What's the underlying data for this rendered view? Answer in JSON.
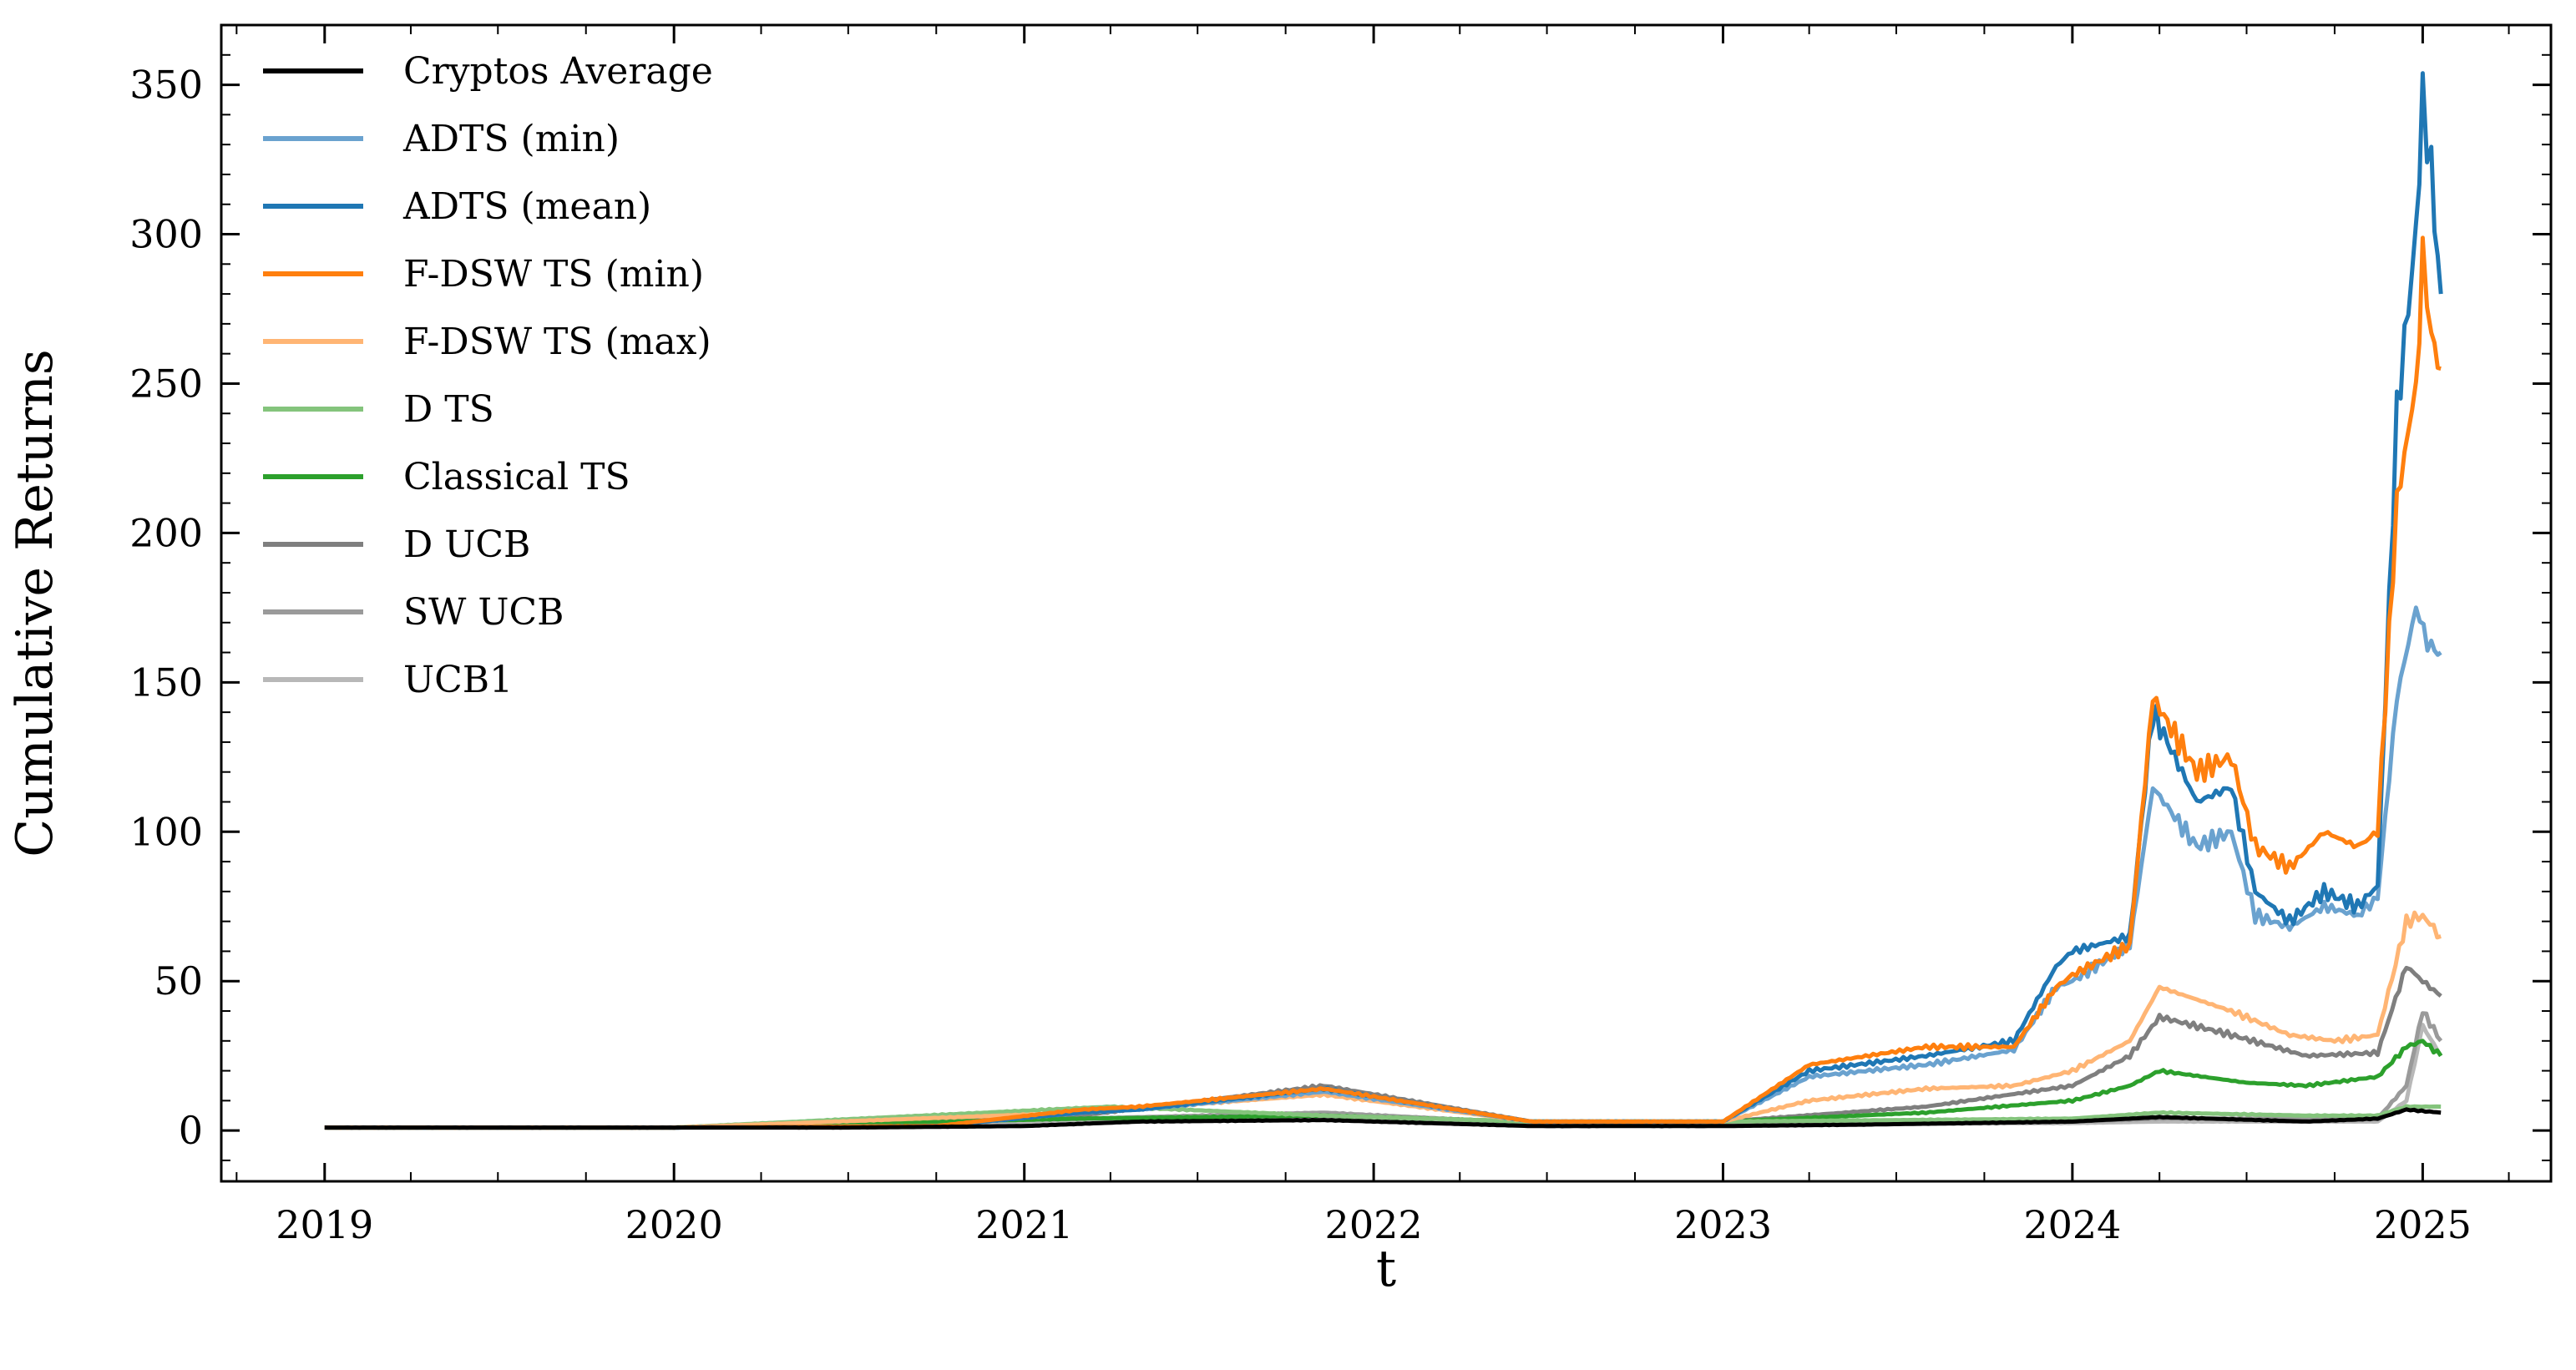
{
  "chart_data": {
    "type": "line",
    "title": "",
    "xlabel": "t",
    "ylabel": "Cumulative Returns",
    "xlim": [
      "2018-09-15",
      "2025-05-15"
    ],
    "ylim": [
      -17,
      370
    ],
    "x_ticks": [
      "2019",
      "2020",
      "2021",
      "2022",
      "2023",
      "2024",
      "2025"
    ],
    "y_ticks": [
      0,
      50,
      100,
      150,
      200,
      250,
      300,
      350
    ],
    "grid": false,
    "legend_position": "upper-left",
    "series": [
      {
        "name": "Cryptos Average",
        "color": "#000000",
        "x": [
          "2019-01-01",
          "2019-07-01",
          "2020-01-01",
          "2020-07-01",
          "2021-01-01",
          "2021-05-01",
          "2021-11-10",
          "2022-06-15",
          "2023-01-01",
          "2023-06-01",
          "2024-01-01",
          "2024-04-01",
          "2024-09-01",
          "2024-11-15",
          "2024-12-15",
          "2025-01-20"
        ],
        "values": [
          1,
          1,
          1,
          1,
          1.5,
          3,
          3.5,
          1.5,
          1.5,
          2,
          3,
          4.5,
          3,
          4,
          7,
          6
        ]
      },
      {
        "name": "ADTS (min)",
        "color": "#6aa2cf",
        "x": [
          "2019-01-01",
          "2020-01-01",
          "2020-10-01",
          "2021-03-01",
          "2021-05-01",
          "2021-11-10",
          "2022-06-15",
          "2023-01-01",
          "2023-04-01",
          "2023-08-01",
          "2023-11-01",
          "2023-12-15",
          "2024-01-01",
          "2024-03-01",
          "2024-03-25",
          "2024-05-10",
          "2024-06-15",
          "2024-07-10",
          "2024-08-15",
          "2024-09-20",
          "2024-10-25",
          "2024-11-15",
          "2024-12-05",
          "2024-12-25",
          "2025-01-10",
          "2025-01-20"
        ],
        "values": [
          1,
          1,
          1.5,
          6,
          7,
          13,
          3,
          3,
          18,
          22,
          27,
          48,
          50,
          62,
          115,
          95,
          100,
          72,
          68,
          75,
          72,
          78,
          145,
          175,
          160,
          160
        ]
      },
      {
        "name": "ADTS (mean)",
        "color": "#1f77b4",
        "x": [
          "2019-01-01",
          "2020-01-01",
          "2020-10-01",
          "2021-03-01",
          "2021-05-01",
          "2021-11-10",
          "2022-06-15",
          "2023-01-01",
          "2023-04-01",
          "2023-08-01",
          "2023-11-01",
          "2023-12-15",
          "2024-01-01",
          "2024-03-01",
          "2024-03-25",
          "2024-05-10",
          "2024-06-15",
          "2024-07-10",
          "2024-08-15",
          "2024-09-20",
          "2024-10-25",
          "2024-11-15",
          "2024-12-05",
          "2024-12-25",
          "2025-01-01",
          "2025-01-10",
          "2025-01-20"
        ],
        "values": [
          1,
          1,
          1.5,
          6,
          7,
          14,
          3,
          3,
          20,
          25,
          30,
          55,
          60,
          65,
          140,
          110,
          115,
          80,
          70,
          80,
          75,
          82,
          240,
          300,
          350,
          320,
          280
        ]
      },
      {
        "name": "F-DSW TS (min)",
        "color": "#ff7f0e",
        "x": [
          "2019-01-01",
          "2020-01-01",
          "2020-10-01",
          "2021-03-01",
          "2021-05-01",
          "2021-11-10",
          "2022-06-15",
          "2023-01-01",
          "2023-04-01",
          "2023-08-01",
          "2023-11-01",
          "2023-12-15",
          "2024-01-01",
          "2024-03-01",
          "2024-03-25",
          "2024-05-10",
          "2024-06-15",
          "2024-07-10",
          "2024-08-15",
          "2024-09-20",
          "2024-10-25",
          "2024-11-15",
          "2024-12-05",
          "2024-12-25",
          "2025-01-01",
          "2025-01-10",
          "2025-01-20"
        ],
        "values": [
          1,
          1,
          1.5,
          7,
          8,
          14,
          3,
          3,
          22,
          28,
          28,
          48,
          52,
          62,
          145,
          120,
          125,
          95,
          88,
          100,
          95,
          100,
          210,
          250,
          290,
          270,
          255
        ]
      },
      {
        "name": "F-DSW TS (max)",
        "color": "#ffb574",
        "x": [
          "2019-01-01",
          "2020-01-01",
          "2021-03-01",
          "2021-11-10",
          "2022-06-15",
          "2023-01-01",
          "2023-04-01",
          "2023-08-01",
          "2023-11-01",
          "2024-01-01",
          "2024-03-01",
          "2024-04-01",
          "2024-06-15",
          "2024-08-15",
          "2024-10-01",
          "2024-11-15",
          "2024-12-15",
          "2025-01-01",
          "2025-01-20"
        ],
        "values": [
          1,
          1,
          6,
          12,
          3,
          3,
          10,
          14,
          15,
          20,
          30,
          48,
          40,
          32,
          30,
          32,
          70,
          72,
          65
        ]
      },
      {
        "name": "D TS",
        "color": "#84c47c",
        "x": [
          "2019-01-01",
          "2020-01-01",
          "2021-04-01",
          "2021-11-10",
          "2022-06-15",
          "2023-01-01",
          "2024-01-01",
          "2024-04-01",
          "2024-09-01",
          "2024-11-15",
          "2024-12-15",
          "2025-01-20"
        ],
        "values": [
          1,
          1,
          8,
          5,
          3,
          3,
          4,
          6,
          5,
          5,
          8,
          8
        ]
      },
      {
        "name": "Classical TS",
        "color": "#2ca02c",
        "x": [
          "2019-01-01",
          "2020-01-01",
          "2021-03-01",
          "2021-11-10",
          "2022-06-15",
          "2023-01-01",
          "2023-08-01",
          "2024-01-01",
          "2024-03-01",
          "2024-04-01",
          "2024-07-01",
          "2024-09-01",
          "2024-11-15",
          "2024-12-15",
          "2025-01-01",
          "2025-01-20"
        ],
        "values": [
          1,
          1,
          4,
          5,
          3,
          3,
          6,
          10,
          15,
          20,
          16,
          15,
          18,
          28,
          30,
          25
        ]
      },
      {
        "name": "D UCB",
        "color": "#7f7f7f",
        "x": [
          "2019-01-01",
          "2020-01-01",
          "2021-03-01",
          "2021-11-10",
          "2022-06-15",
          "2023-01-01",
          "2023-08-01",
          "2024-01-01",
          "2024-03-01",
          "2024-04-01",
          "2024-06-15",
          "2024-09-01",
          "2024-11-15",
          "2024-12-15",
          "2025-01-01",
          "2025-01-20"
        ],
        "values": [
          1,
          1,
          5,
          15,
          3,
          3,
          8,
          15,
          25,
          38,
          32,
          25,
          26,
          55,
          50,
          45
        ]
      },
      {
        "name": "SW UCB",
        "color": "#9a9a9a",
        "x": [
          "2019-01-01",
          "2020-01-01",
          "2021-03-01",
          "2021-11-10",
          "2022-06-15",
          "2023-01-01",
          "2024-01-01",
          "2024-04-01",
          "2024-11-15",
          "2024-12-15",
          "2025-01-01",
          "2025-01-20"
        ],
        "values": [
          1,
          1,
          4,
          6,
          2.5,
          2.5,
          3,
          4,
          4,
          15,
          40,
          30
        ]
      },
      {
        "name": "UCB1",
        "color": "#b8b8b8",
        "x": [
          "2019-01-01",
          "2020-01-01",
          "2021-03-01",
          "2021-11-10",
          "2022-06-15",
          "2023-01-01",
          "2024-01-01",
          "2024-04-01",
          "2024-11-15",
          "2024-12-15",
          "2025-01-01",
          "2025-01-20"
        ],
        "values": [
          1,
          1,
          3,
          4,
          2,
          2,
          2.5,
          3,
          3,
          10,
          35,
          25
        ]
      }
    ]
  }
}
